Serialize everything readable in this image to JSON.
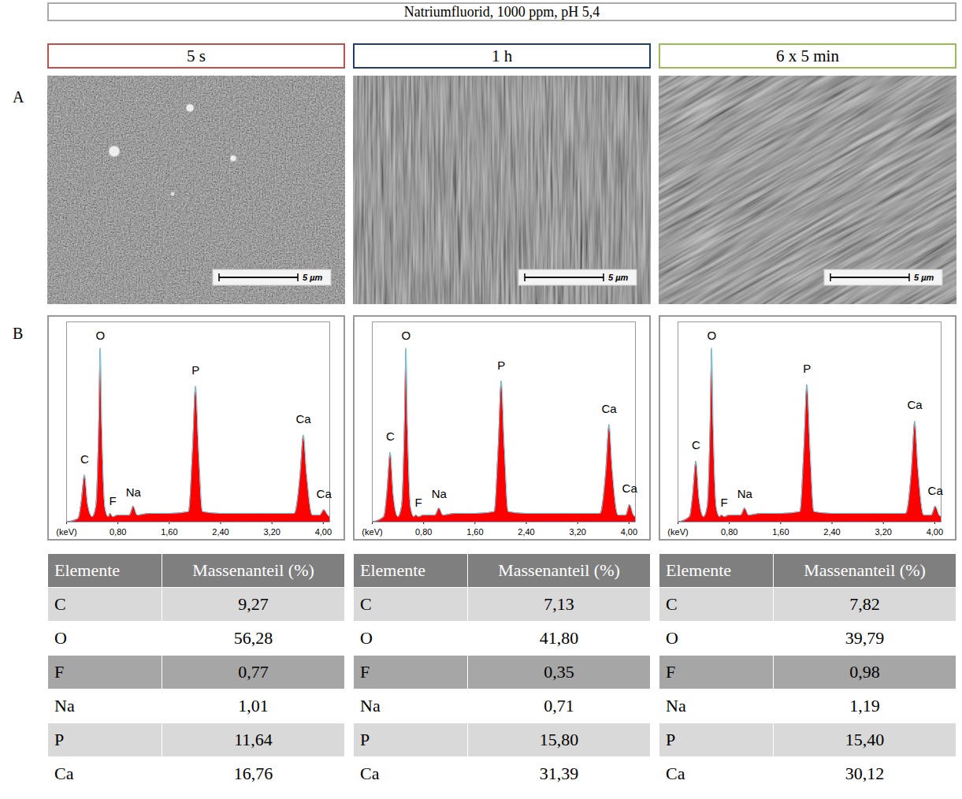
{
  "title": "Natriumfluorid, 1000 ppm, pH 5,4",
  "row_labels": [
    "A",
    "B"
  ],
  "columns": [
    {
      "title": "5 s",
      "color": "#c0504d"
    },
    {
      "title": "1 h",
      "color": "#1f3e6e"
    },
    {
      "title": "6 x 5 min",
      "color": "#9bbb59"
    }
  ],
  "scale_bar_label": "5 µm",
  "chart_data": [
    {
      "type": "area",
      "color": "#ff0000",
      "xlim": [
        0,
        4.1
      ],
      "ylim": [
        0,
        115
      ],
      "tick_labels": "x",
      "xticks": [
        {
          "value": 0,
          "label": "(keV)"
        },
        {
          "value": 0.8,
          "label": "0,80"
        },
        {
          "value": 1.6,
          "label": "1,60"
        },
        {
          "value": 2.4,
          "label": "2,40"
        },
        {
          "value": 3.2,
          "label": "3,20"
        },
        {
          "value": 4.0,
          "label": "4,00"
        }
      ],
      "x": [
        0,
        0.18,
        0.23,
        0.28,
        0.33,
        0.4,
        0.46,
        0.5,
        0.525,
        0.55,
        0.6,
        0.65,
        0.68,
        0.72,
        0.8,
        0.98,
        1.04,
        1.1,
        1.3,
        1.6,
        1.9,
        1.96,
        2.01,
        2.06,
        2.12,
        2.4,
        3.0,
        3.55,
        3.64,
        3.69,
        3.74,
        3.83,
        3.95,
        4.01,
        4.07,
        4.1
      ],
      "values": [
        0,
        2,
        12,
        27,
        10,
        3,
        10,
        55,
        100,
        55,
        8,
        3,
        5,
        3,
        4,
        4,
        9,
        4,
        5,
        5,
        6,
        40,
        78,
        40,
        6,
        5,
        5,
        5,
        28,
        50,
        28,
        4,
        4,
        7,
        4,
        3
      ],
      "annotations": [
        {
          "text": "C",
          "x": 0.28,
          "y": 36
        },
        {
          "text": "O",
          "x": 0.525,
          "y": 107
        },
        {
          "text": "F",
          "x": 0.72,
          "y": 12
        },
        {
          "text": "Na",
          "x": 1.04,
          "y": 17
        },
        {
          "text": "P",
          "x": 2.01,
          "y": 87
        },
        {
          "text": "Ca",
          "x": 3.69,
          "y": 59
        },
        {
          "text": "Ca",
          "x": 4.01,
          "y": 16
        }
      ]
    },
    {
      "type": "area",
      "color": "#ff0000",
      "xlim": [
        0,
        4.1
      ],
      "ylim": [
        0,
        115
      ],
      "tick_labels": "x",
      "xticks": [
        {
          "value": 0,
          "label": "(keV)"
        },
        {
          "value": 0.8,
          "label": "0,80"
        },
        {
          "value": 1.6,
          "label": "1,60"
        },
        {
          "value": 2.4,
          "label": "2,40"
        },
        {
          "value": 3.2,
          "label": "3,20"
        },
        {
          "value": 4.0,
          "label": "4,00"
        }
      ],
      "x": [
        0,
        0.18,
        0.23,
        0.28,
        0.33,
        0.4,
        0.46,
        0.5,
        0.525,
        0.55,
        0.6,
        0.65,
        0.68,
        0.72,
        0.8,
        0.98,
        1.04,
        1.1,
        1.3,
        1.6,
        1.9,
        1.96,
        2.01,
        2.06,
        2.12,
        2.4,
        3.0,
        3.55,
        3.64,
        3.69,
        3.74,
        3.83,
        3.95,
        4.01,
        4.07,
        4.1
      ],
      "values": [
        0,
        3,
        18,
        40,
        15,
        3,
        10,
        55,
        100,
        55,
        8,
        3,
        4,
        3,
        4,
        4,
        8,
        4,
        5,
        5,
        6,
        42,
        81,
        42,
        6,
        5,
        5,
        5,
        30,
        56,
        30,
        4,
        4,
        10,
        4,
        3
      ],
      "annotations": [
        {
          "text": "C",
          "x": 0.28,
          "y": 49
        },
        {
          "text": "O",
          "x": 0.525,
          "y": 107
        },
        {
          "text": "F",
          "x": 0.72,
          "y": 11
        },
        {
          "text": "Na",
          "x": 1.04,
          "y": 16
        },
        {
          "text": "P",
          "x": 2.01,
          "y": 90
        },
        {
          "text": "Ca",
          "x": 3.69,
          "y": 65
        },
        {
          "text": "Ca",
          "x": 4.01,
          "y": 19
        }
      ]
    },
    {
      "type": "area",
      "color": "#ff0000",
      "xlim": [
        0,
        4.1
      ],
      "ylim": [
        0,
        115
      ],
      "tick_labels": "x",
      "xticks": [
        {
          "value": 0,
          "label": "(keV)"
        },
        {
          "value": 0.8,
          "label": "0,80"
        },
        {
          "value": 1.6,
          "label": "1,60"
        },
        {
          "value": 2.4,
          "label": "2,40"
        },
        {
          "value": 3.2,
          "label": "3,20"
        },
        {
          "value": 4.0,
          "label": "4,00"
        }
      ],
      "x": [
        0,
        0.18,
        0.23,
        0.28,
        0.33,
        0.4,
        0.46,
        0.5,
        0.525,
        0.55,
        0.6,
        0.65,
        0.68,
        0.72,
        0.8,
        0.98,
        1.04,
        1.1,
        1.3,
        1.6,
        1.9,
        1.96,
        2.01,
        2.06,
        2.12,
        2.4,
        3.0,
        3.55,
        3.64,
        3.69,
        3.74,
        3.83,
        3.95,
        4.01,
        4.07,
        4.1
      ],
      "values": [
        0,
        3,
        16,
        35,
        13,
        3,
        10,
        55,
        100,
        55,
        8,
        3,
        4,
        3,
        4,
        4,
        8,
        4,
        5,
        5,
        6,
        41,
        79,
        41,
        6,
        5,
        5,
        5,
        31,
        58,
        31,
        4,
        4,
        9,
        4,
        3
      ],
      "annotations": [
        {
          "text": "C",
          "x": 0.28,
          "y": 44
        },
        {
          "text": "O",
          "x": 0.525,
          "y": 107
        },
        {
          "text": "F",
          "x": 0.72,
          "y": 11
        },
        {
          "text": "Na",
          "x": 1.04,
          "y": 16
        },
        {
          "text": "P",
          "x": 2.01,
          "y": 88
        },
        {
          "text": "Ca",
          "x": 3.69,
          "y": 67
        },
        {
          "text": "Ca",
          "x": 4.01,
          "y": 18
        }
      ]
    }
  ],
  "tables": [
    {
      "header": [
        "Elemente",
        "Massenanteil (%)"
      ],
      "rows": [
        [
          "C",
          "9,27"
        ],
        [
          "O",
          "56,28"
        ],
        [
          "F",
          "0,77"
        ],
        [
          "Na",
          "1,01"
        ],
        [
          "P",
          "11,64"
        ],
        [
          "Ca",
          "16,76"
        ]
      ]
    },
    {
      "header": [
        "Elemente",
        "Massenanteil (%)"
      ],
      "rows": [
        [
          "C",
          "7,13"
        ],
        [
          "O",
          "41,80"
        ],
        [
          "F",
          "0,35"
        ],
        [
          "Na",
          "0,71"
        ],
        [
          "P",
          "15,80"
        ],
        [
          "Ca",
          "31,39"
        ]
      ]
    },
    {
      "header": [
        "Elemente",
        "Massenanteil (%)"
      ],
      "rows": [
        [
          "C",
          "7,82"
        ],
        [
          "O",
          "39,79"
        ],
        [
          "F",
          "0,98"
        ],
        [
          "Na",
          "1,19"
        ],
        [
          "P",
          "15,40"
        ],
        [
          "Ca",
          "30,12"
        ]
      ]
    }
  ]
}
